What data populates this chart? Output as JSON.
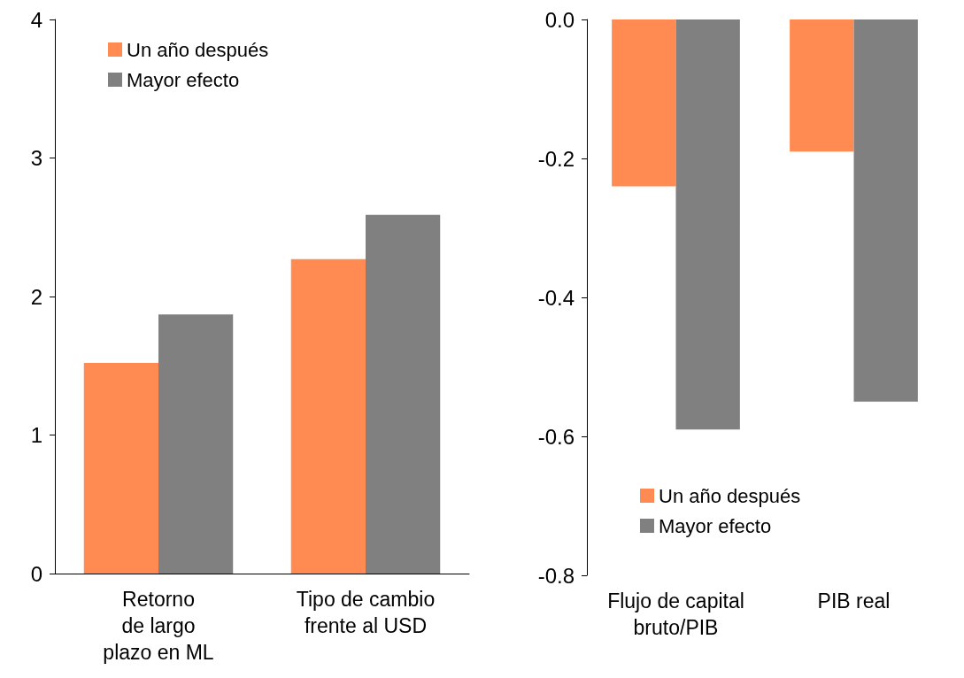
{
  "chart_data": [
    {
      "type": "bar",
      "categories": [
        "Retorno\nde largo\nplazo en ML",
        "Tipo de cambio\nfrente al USD"
      ],
      "series": [
        {
          "name": "Un año después",
          "color": "#ff8a52",
          "values": [
            1.52,
            2.27
          ]
        },
        {
          "name": "Mayor efecto",
          "color": "#808080",
          "values": [
            1.87,
            2.59
          ]
        }
      ],
      "ylim": [
        0,
        4
      ],
      "yticks": [
        0,
        1,
        2,
        3,
        4
      ],
      "grid": false,
      "legend": "top left"
    },
    {
      "type": "bar",
      "categories": [
        "Flujo de capital\nbruto/PIB",
        "PIB real"
      ],
      "series": [
        {
          "name": "Un año después",
          "color": "#ff8a52",
          "values": [
            -0.24,
            -0.19
          ]
        },
        {
          "name": "Mayor efecto",
          "color": "#808080",
          "values": [
            -0.59,
            -0.55
          ]
        }
      ],
      "ylim": [
        -0.8,
        0
      ],
      "yticks": [
        {
          "value": -0.8,
          "label": "-0.8"
        },
        -0.6,
        -0.4,
        -0.2,
        {
          "value": 0,
          "label": "0.0"
        }
      ],
      "grid": false,
      "legend": "bottom left"
    }
  ]
}
